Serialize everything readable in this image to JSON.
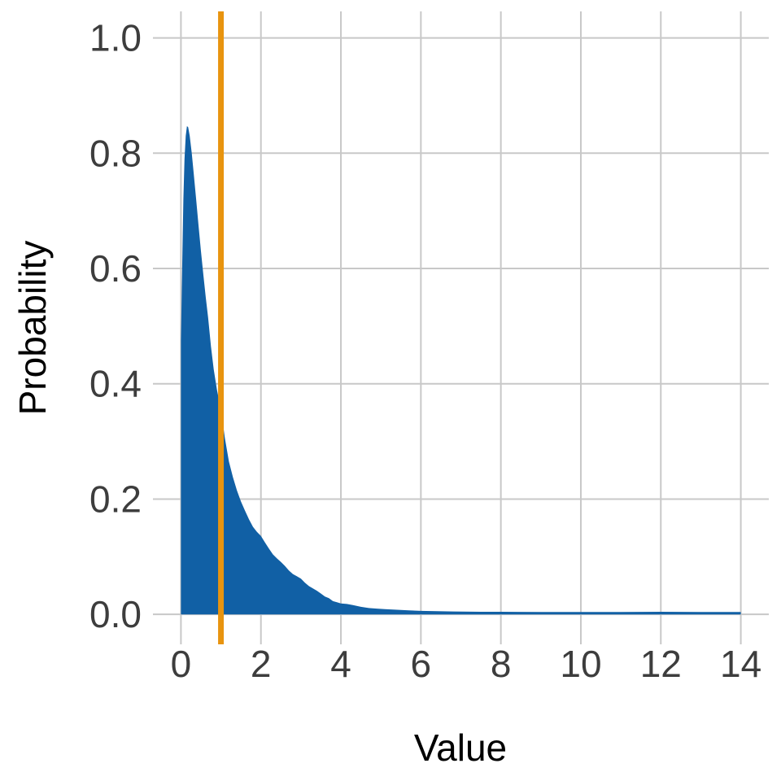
{
  "chart_data": {
    "type": "area",
    "title": "",
    "xlabel": "Value",
    "ylabel": "Probability",
    "xlim": [
      -0.7,
      14.7
    ],
    "ylim": [
      -0.052,
      1.046
    ],
    "x_ticks": [
      0,
      2,
      4,
      6,
      8,
      10,
      12,
      14
    ],
    "x_tick_labels": [
      "0",
      "2",
      "4",
      "6",
      "8",
      "10",
      "12",
      "14"
    ],
    "y_ticks": [
      0.0,
      0.2,
      0.4,
      0.6,
      0.8,
      1.0
    ],
    "y_tick_labels": [
      "0.0",
      "0.2",
      "0.4",
      "0.6",
      "0.8",
      "1.0"
    ],
    "grid": true,
    "legend": "none",
    "colors": {
      "area": "#1160a5",
      "vline": "#e8940f",
      "grid": "#c8c8c8",
      "tick_label": "#3d3d3d",
      "axis_label": "#000000",
      "background": "#ffffff"
    },
    "vline": {
      "x": 1,
      "width": 7
    },
    "series": [
      {
        "name": "probability-density",
        "type": "area",
        "color_key": "area",
        "points": [
          [
            0.0,
            0.475
          ],
          [
            0.03,
            0.6
          ],
          [
            0.06,
            0.72
          ],
          [
            0.09,
            0.79
          ],
          [
            0.12,
            0.83
          ],
          [
            0.15,
            0.847
          ],
          [
            0.18,
            0.845
          ],
          [
            0.22,
            0.83
          ],
          [
            0.27,
            0.8
          ],
          [
            0.32,
            0.765
          ],
          [
            0.38,
            0.72
          ],
          [
            0.44,
            0.675
          ],
          [
            0.5,
            0.63
          ],
          [
            0.56,
            0.59
          ],
          [
            0.62,
            0.55
          ],
          [
            0.68,
            0.515
          ],
          [
            0.75,
            0.465
          ],
          [
            0.82,
            0.425
          ],
          [
            0.9,
            0.39
          ],
          [
            1.0,
            0.355
          ],
          [
            1.1,
            0.305
          ],
          [
            1.2,
            0.265
          ],
          [
            1.3,
            0.238
          ],
          [
            1.4,
            0.215
          ],
          [
            1.5,
            0.196
          ],
          [
            1.6,
            0.18
          ],
          [
            1.7,
            0.165
          ],
          [
            1.8,
            0.152
          ],
          [
            1.9,
            0.143
          ],
          [
            2.0,
            0.136
          ],
          [
            2.1,
            0.125
          ],
          [
            2.2,
            0.114
          ],
          [
            2.3,
            0.104
          ],
          [
            2.4,
            0.097
          ],
          [
            2.5,
            0.091
          ],
          [
            2.6,
            0.084
          ],
          [
            2.7,
            0.076
          ],
          [
            2.8,
            0.07
          ],
          [
            2.9,
            0.066
          ],
          [
            3.0,
            0.062
          ],
          [
            3.1,
            0.055
          ],
          [
            3.2,
            0.049
          ],
          [
            3.3,
            0.045
          ],
          [
            3.4,
            0.041
          ],
          [
            3.5,
            0.036
          ],
          [
            3.6,
            0.031
          ],
          [
            3.7,
            0.028
          ],
          [
            3.8,
            0.023
          ],
          [
            3.9,
            0.021
          ],
          [
            4.0,
            0.019
          ],
          [
            4.15,
            0.018
          ],
          [
            4.3,
            0.016
          ],
          [
            4.5,
            0.013
          ],
          [
            4.7,
            0.011
          ],
          [
            4.9,
            0.01
          ],
          [
            5.1,
            0.009
          ],
          [
            5.4,
            0.008
          ],
          [
            5.7,
            0.007
          ],
          [
            6.0,
            0.006
          ],
          [
            6.4,
            0.0055
          ],
          [
            6.8,
            0.005
          ],
          [
            7.5,
            0.0045
          ],
          [
            8.0,
            0.0045
          ],
          [
            9.0,
            0.004
          ],
          [
            10.0,
            0.004
          ],
          [
            11.0,
            0.004
          ],
          [
            12.0,
            0.0045
          ],
          [
            13.0,
            0.004
          ],
          [
            14.0,
            0.004
          ]
        ]
      }
    ]
  }
}
